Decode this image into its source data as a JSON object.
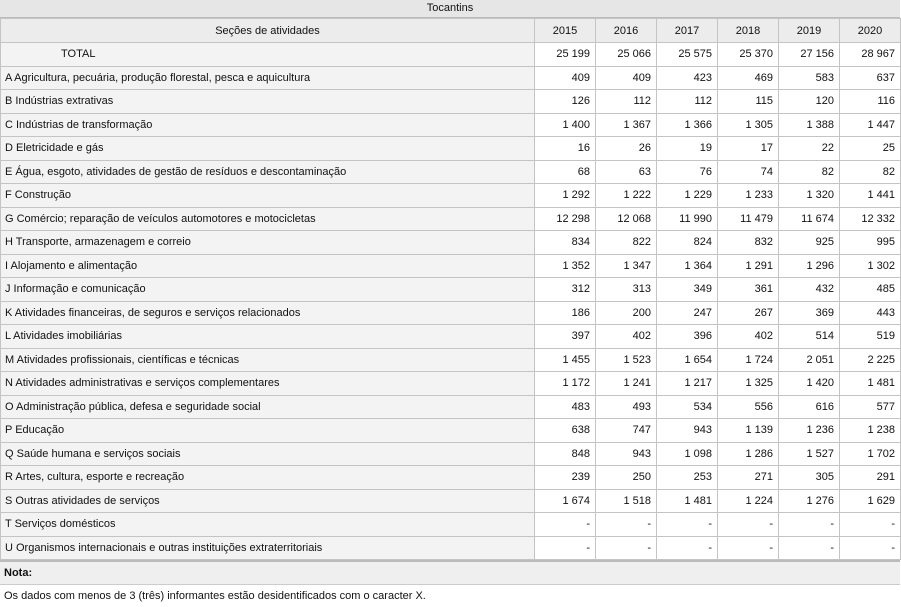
{
  "title": "Tocantins",
  "table": {
    "header": [
      "Seções de atividades",
      "2015",
      "2016",
      "2017",
      "2018",
      "2019",
      "2020"
    ],
    "rows": [
      [
        "TOTAL",
        "25 199",
        "25 066",
        "25 575",
        "25 370",
        "27 156",
        "28 967"
      ],
      [
        "A Agricultura, pecuária, produção florestal, pesca e aquicultura",
        "409",
        "409",
        "423",
        "469",
        "583",
        "637"
      ],
      [
        "B Indústrias extrativas",
        "126",
        "112",
        "112",
        "115",
        "120",
        "116"
      ],
      [
        "C Indústrias de transformação",
        "1 400",
        "1 367",
        "1 366",
        "1 305",
        "1 388",
        "1 447"
      ],
      [
        "D Eletricidade e gás",
        "16",
        "26",
        "19",
        "17",
        "22",
        "25"
      ],
      [
        "E Água, esgoto, atividades de gestão de resíduos e descontaminação",
        "68",
        "63",
        "76",
        "74",
        "82",
        "82"
      ],
      [
        "F Construção",
        "1 292",
        "1 222",
        "1 229",
        "1 233",
        "1 320",
        "1 441"
      ],
      [
        "G Comércio; reparação de veículos automotores e motocicletas",
        "12 298",
        "12 068",
        "11 990",
        "11 479",
        "11 674",
        "12 332"
      ],
      [
        "H Transporte, armazenagem e correio",
        "834",
        "822",
        "824",
        "832",
        "925",
        "995"
      ],
      [
        "I Alojamento e alimentação",
        "1 352",
        "1 347",
        "1 364",
        "1 291",
        "1 296",
        "1 302"
      ],
      [
        "J Informação e comunicação",
        "312",
        "313",
        "349",
        "361",
        "432",
        "485"
      ],
      [
        "K Atividades financeiras, de seguros e serviços relacionados",
        "186",
        "200",
        "247",
        "267",
        "369",
        "443"
      ],
      [
        "L Atividades imobiliárias",
        "397",
        "402",
        "396",
        "402",
        "514",
        "519"
      ],
      [
        "M Atividades profissionais, científicas e técnicas",
        "1 455",
        "1 523",
        "1 654",
        "1 724",
        "2 051",
        "2 225"
      ],
      [
        "N Atividades administrativas e serviços complementares",
        "1 172",
        "1 241",
        "1 217",
        "1 325",
        "1 420",
        "1 481"
      ],
      [
        "O Administração pública, defesa e seguridade social",
        "483",
        "493",
        "534",
        "556",
        "616",
        "577"
      ],
      [
        "P Educação",
        "638",
        "747",
        "943",
        "1 139",
        "1 236",
        "1 238"
      ],
      [
        "Q Saúde humana e serviços sociais",
        "848",
        "943",
        "1 098",
        "1 286",
        "1 527",
        "1 702"
      ],
      [
        "R Artes, cultura, esporte e recreação",
        "239",
        "250",
        "253",
        "271",
        "305",
        "291"
      ],
      [
        "S Outras atividades de serviços",
        "1 674",
        "1 518",
        "1 481",
        "1 224",
        "1 276",
        "1 629"
      ],
      [
        "T Serviços domésticos",
        "-",
        "-",
        "-",
        "-",
        "-",
        "-"
      ],
      [
        "U Organismos internacionais e outras instituições extraterritoriais",
        "-",
        "-",
        "-",
        "-",
        "-",
        "-"
      ]
    ]
  },
  "note": {
    "label": "Nota:",
    "text": "Os dados com menos de 3 (três) informantes estão desidentificados com o caracter X."
  }
}
